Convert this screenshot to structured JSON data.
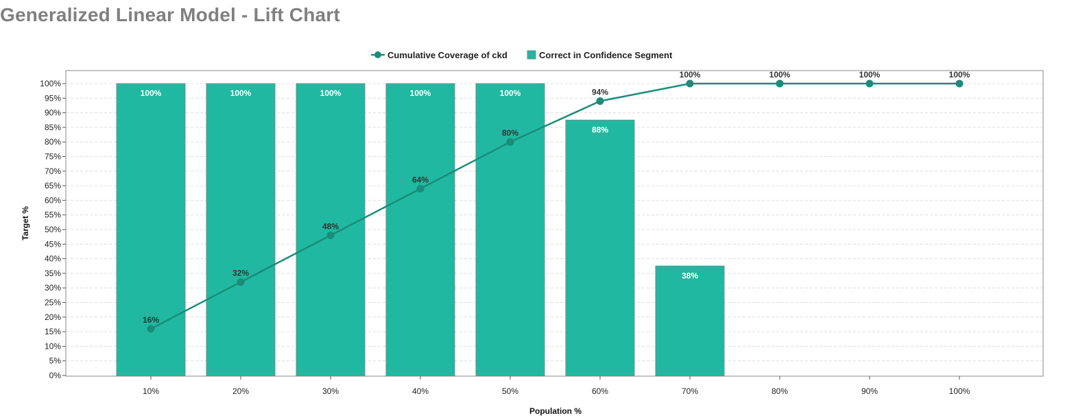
{
  "title": "Generalized Linear Model - Lift Chart",
  "chart_data": {
    "type": "bar",
    "categories": [
      "10%",
      "20%",
      "30%",
      "40%",
      "50%",
      "60%",
      "70%",
      "80%",
      "90%",
      "100%"
    ],
    "series": [
      {
        "name": "Correct in Confidence Segment",
        "kind": "bar",
        "color": "#20B8A0",
        "values": [
          100,
          100,
          100,
          100,
          100,
          87.5,
          37.5,
          0,
          0,
          0
        ],
        "labels": [
          "100%",
          "100%",
          "100%",
          "100%",
          "100%",
          "88%",
          "38%",
          "",
          "",
          ""
        ]
      },
      {
        "name": "Cumulative Coverage of ckd",
        "kind": "line",
        "color": "#1A8C7A",
        "values": [
          16,
          32,
          48,
          64,
          80,
          94,
          100,
          100,
          100,
          100
        ],
        "labels": [
          "16%",
          "32%",
          "48%",
          "64%",
          "80%",
          "94%",
          "100%",
          "100%",
          "100%",
          "100%"
        ]
      }
    ],
    "xlabel": "Population %",
    "ylabel": "Target %",
    "ylim": [
      0,
      100
    ],
    "yticks": [
      "0%",
      "5%",
      "10%",
      "15%",
      "20%",
      "25%",
      "30%",
      "35%",
      "40%",
      "45%",
      "50%",
      "55%",
      "60%",
      "65%",
      "70%",
      "75%",
      "80%",
      "85%",
      "90%",
      "95%",
      "100%"
    ],
    "grid": true,
    "legend": "top-center"
  }
}
